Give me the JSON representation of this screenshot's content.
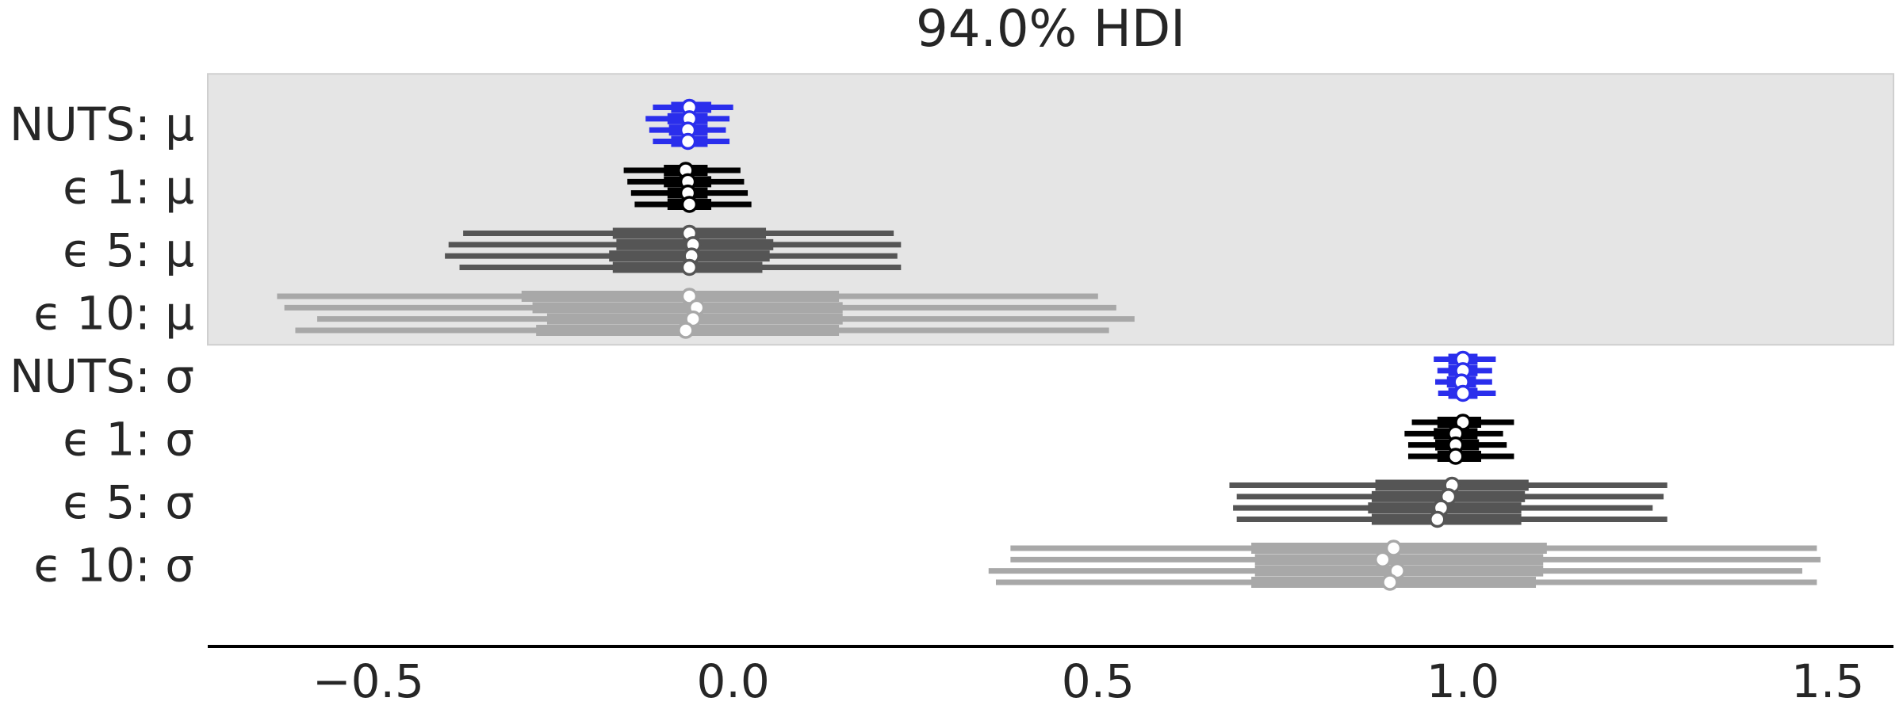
{
  "chart_data": {
    "type": "forest",
    "title": "94.0% HDI",
    "xlabel": "",
    "ylabel": "",
    "xlim": [
      -0.72,
      1.59
    ],
    "x_ticks": [
      -0.5,
      0.0,
      0.5,
      1.0,
      1.5
    ],
    "x_tick_labels": [
      "−0.5",
      "0.0",
      "0.5",
      "1.0",
      "1.5"
    ],
    "grid": false,
    "legend": "none",
    "colors": {
      "NUTS": "#2a2eec",
      "eps1": "#000000",
      "eps5": "#555555",
      "eps10": "#a8a8a8",
      "shade": "#e5e5e5",
      "marker_fill": "#ffffff"
    },
    "rows": [
      {
        "label": "NUTS: μ",
        "group": "mu",
        "color_key": "NUTS",
        "chains": [
          {
            "hdi": [
              -0.11,
              0.0
            ],
            "iqr": [
              -0.085,
              -0.03
            ],
            "median": -0.06
          },
          {
            "hdi": [
              -0.12,
              -0.005
            ],
            "iqr": [
              -0.09,
              -0.035
            ],
            "median": -0.06
          },
          {
            "hdi": [
              -0.115,
              -0.01
            ],
            "iqr": [
              -0.088,
              -0.035
            ],
            "median": -0.062
          },
          {
            "hdi": [
              -0.11,
              -0.005
            ],
            "iqr": [
              -0.085,
              -0.035
            ],
            "median": -0.062
          }
        ]
      },
      {
        "label": "ϵ 1: μ",
        "group": "mu",
        "color_key": "eps1",
        "chains": [
          {
            "hdi": [
              -0.15,
              0.01
            ],
            "iqr": [
              -0.095,
              -0.035
            ],
            "median": -0.065
          },
          {
            "hdi": [
              -0.145,
              0.015
            ],
            "iqr": [
              -0.095,
              -0.03
            ],
            "median": -0.062
          },
          {
            "hdi": [
              -0.14,
              0.02
            ],
            "iqr": [
              -0.09,
              -0.035
            ],
            "median": -0.062
          },
          {
            "hdi": [
              -0.135,
              0.025
            ],
            "iqr": [
              -0.09,
              -0.03
            ],
            "median": -0.06
          }
        ]
      },
      {
        "label": "ϵ 5: μ",
        "group": "mu",
        "color_key": "eps5",
        "chains": [
          {
            "hdi": [
              -0.37,
              0.22
            ],
            "iqr": [
              -0.165,
              0.045
            ],
            "median": -0.06
          },
          {
            "hdi": [
              -0.39,
              0.23
            ],
            "iqr": [
              -0.16,
              0.055
            ],
            "median": -0.055
          },
          {
            "hdi": [
              -0.395,
              0.225
            ],
            "iqr": [
              -0.17,
              0.05
            ],
            "median": -0.057
          },
          {
            "hdi": [
              -0.375,
              0.23
            ],
            "iqr": [
              -0.165,
              0.04
            ],
            "median": -0.06
          }
        ]
      },
      {
        "label": "ϵ 10: μ",
        "group": "mu",
        "color_key": "eps10",
        "chains": [
          {
            "hdi": [
              -0.625,
              0.5
            ],
            "iqr": [
              -0.29,
              0.145
            ],
            "median": -0.06
          },
          {
            "hdi": [
              -0.615,
              0.525
            ],
            "iqr": [
              -0.275,
              0.15
            ],
            "median": -0.05
          },
          {
            "hdi": [
              -0.57,
              0.55
            ],
            "iqr": [
              -0.255,
              0.15
            ],
            "median": -0.055
          },
          {
            "hdi": [
              -0.6,
              0.515
            ],
            "iqr": [
              -0.27,
              0.145
            ],
            "median": -0.065
          }
        ]
      },
      {
        "label": "NUTS: σ",
        "group": "sigma",
        "color_key": "NUTS",
        "chains": [
          {
            "hdi": [
              0.96,
              1.045
            ],
            "iqr": [
              0.98,
              1.02
            ],
            "median": 1.0
          },
          {
            "hdi": [
              0.965,
              1.04
            ],
            "iqr": [
              0.98,
              1.02
            ],
            "median": 1.0
          },
          {
            "hdi": [
              0.962,
              1.04
            ],
            "iqr": [
              0.978,
              1.018
            ],
            "median": 0.998
          },
          {
            "hdi": [
              0.966,
              1.045
            ],
            "iqr": [
              0.98,
              1.02
            ],
            "median": 1.0
          }
        ]
      },
      {
        "label": "ϵ 1: σ",
        "group": "sigma",
        "color_key": "eps1",
        "chains": [
          {
            "hdi": [
              0.93,
              1.07
            ],
            "iqr": [
              0.965,
              1.025
            ],
            "median": 1.0
          },
          {
            "hdi": [
              0.92,
              1.055
            ],
            "iqr": [
              0.96,
              1.02
            ],
            "median": 0.99
          },
          {
            "hdi": [
              0.925,
              1.06
            ],
            "iqr": [
              0.962,
              1.022
            ],
            "median": 0.99
          },
          {
            "hdi": [
              0.925,
              1.07
            ],
            "iqr": [
              0.965,
              1.025
            ],
            "median": 0.99
          }
        ]
      },
      {
        "label": "ϵ 5: σ",
        "group": "sigma",
        "color_key": "eps5",
        "chains": [
          {
            "hdi": [
              0.68,
              1.28
            ],
            "iqr": [
              0.88,
              1.09
            ],
            "median": 0.985
          },
          {
            "hdi": [
              0.69,
              1.275
            ],
            "iqr": [
              0.875,
              1.085
            ],
            "median": 0.98
          },
          {
            "hdi": [
              0.685,
              1.26
            ],
            "iqr": [
              0.87,
              1.08
            ],
            "median": 0.97
          },
          {
            "hdi": [
              0.69,
              1.28
            ],
            "iqr": [
              0.875,
              1.08
            ],
            "median": 0.965
          }
        ]
      },
      {
        "label": "ϵ 10: σ",
        "group": "sigma",
        "color_key": "eps10",
        "chains": [
          {
            "hdi": [
              0.38,
              1.485
            ],
            "iqr": [
              0.71,
              1.115
            ],
            "median": 0.905
          },
          {
            "hdi": [
              0.38,
              1.49
            ],
            "iqr": [
              0.715,
              1.11
            ],
            "median": 0.89
          },
          {
            "hdi": [
              0.35,
              1.465
            ],
            "iqr": [
              0.715,
              1.11
            ],
            "median": 0.91
          },
          {
            "hdi": [
              0.36,
              1.485
            ],
            "iqr": [
              0.71,
              1.1
            ],
            "median": 0.9
          }
        ]
      }
    ],
    "shaded_group": "mu"
  }
}
